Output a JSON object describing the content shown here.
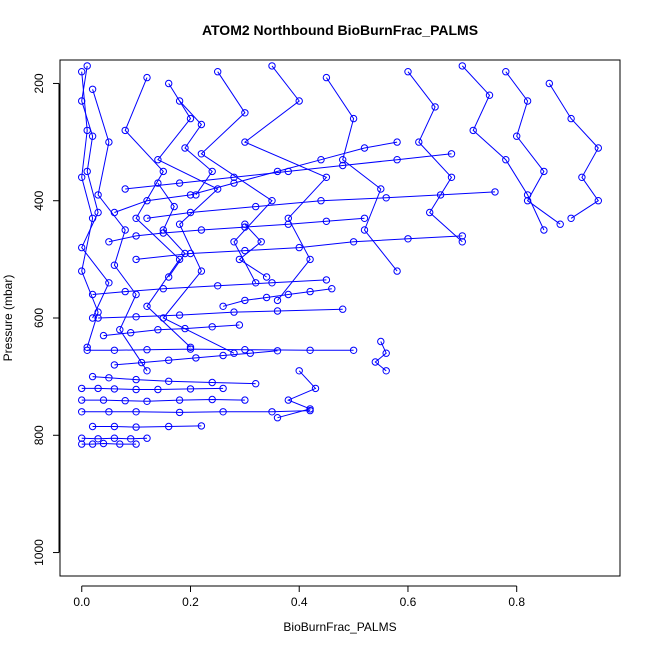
{
  "chart_data": {
    "type": "line",
    "title": "ATOM2 Northbound BioBurnFrac_PALMS",
    "xlabel": "BioBurnFrac_PALMS",
    "ylabel": "Pressure (mbar)",
    "xlim": [
      -0.04,
      0.99
    ],
    "ylim": [
      1040,
      160
    ],
    "y_reversed": true,
    "x_ticks": [
      0.0,
      0.2,
      0.4,
      0.6,
      0.8
    ],
    "x_tick_labels": [
      "0.0",
      "0.2",
      "0.4",
      "0.6",
      "0.8"
    ],
    "y_ticks": [
      200,
      400,
      600,
      800,
      1000
    ],
    "y_tick_labels": [
      "200",
      "400",
      "600",
      "800",
      "1000"
    ],
    "grid": false,
    "color": "#0000ff",
    "marker": "open-circle",
    "series": [
      {
        "x": [
          0.01,
          0.0,
          0.02,
          0.01,
          0.03,
          0.0,
          0.05,
          0.02
        ],
        "y": [
          170,
          230,
          290,
          350,
          420,
          480,
          540,
          600
        ]
      },
      {
        "x": [
          0.0,
          0.01,
          0.0,
          0.02,
          0.0,
          0.03,
          0.01
        ],
        "y": [
          180,
          280,
          360,
          430,
          520,
          590,
          650
        ]
      },
      {
        "x": [
          0.02,
          0.05,
          0.03,
          0.08,
          0.06,
          0.1,
          0.07,
          0.12
        ],
        "y": [
          210,
          300,
          390,
          450,
          510,
          560,
          620,
          690
        ]
      },
      {
        "x": [
          0.12,
          0.08,
          0.15,
          0.1,
          0.18,
          0.12,
          0.2
        ],
        "y": [
          190,
          280,
          350,
          430,
          500,
          580,
          650
        ]
      },
      {
        "x": [
          0.16,
          0.2,
          0.14,
          0.25,
          0.18,
          0.22,
          0.15,
          0.28
        ],
        "y": [
          200,
          260,
          330,
          380,
          440,
          520,
          600,
          660
        ]
      },
      {
        "x": [
          0.25,
          0.3,
          0.22,
          0.35,
          0.28,
          0.32
        ],
        "y": [
          180,
          250,
          320,
          400,
          470,
          540
        ]
      },
      {
        "x": [
          0.35,
          0.4,
          0.3,
          0.45,
          0.38,
          0.42,
          0.36
        ],
        "y": [
          170,
          230,
          300,
          360,
          430,
          500,
          570
        ]
      },
      {
        "x": [
          0.45,
          0.5,
          0.48,
          0.55,
          0.52,
          0.58
        ],
        "y": [
          190,
          260,
          330,
          380,
          450,
          520
        ]
      },
      {
        "x": [
          0.6,
          0.65,
          0.62,
          0.68,
          0.64,
          0.7
        ],
        "y": [
          180,
          240,
          300,
          360,
          420,
          470
        ]
      },
      {
        "x": [
          0.78,
          0.82,
          0.8,
          0.85,
          0.82,
          0.88
        ],
        "y": [
          180,
          230,
          290,
          350,
          400,
          440
        ]
      },
      {
        "x": [
          0.86,
          0.9,
          0.95,
          0.92,
          0.95,
          0.9
        ],
        "y": [
          200,
          260,
          310,
          360,
          400,
          430
        ]
      },
      {
        "x": [
          0.7,
          0.75,
          0.72,
          0.78,
          0.82,
          0.85
        ],
        "y": [
          170,
          220,
          280,
          330,
          390,
          450
        ]
      },
      {
        "x": [
          0.05,
          0.1,
          0.15,
          0.22,
          0.3,
          0.38,
          0.45,
          0.52
        ],
        "y": [
          470,
          460,
          455,
          450,
          445,
          440,
          435,
          430
        ]
      },
      {
        "x": [
          0.1,
          0.2,
          0.3,
          0.4,
          0.5,
          0.6,
          0.7
        ],
        "y": [
          500,
          490,
          485,
          480,
          470,
          465,
          460
        ]
      },
      {
        "x": [
          0.02,
          0.08,
          0.15,
          0.25,
          0.35,
          0.45
        ],
        "y": [
          560,
          555,
          550,
          545,
          540,
          535
        ]
      },
      {
        "x": [
          0.03,
          0.1,
          0.18,
          0.28,
          0.36,
          0.48
        ],
        "y": [
          600,
          598,
          595,
          590,
          588,
          585
        ]
      },
      {
        "x": [
          0.01,
          0.06,
          0.12,
          0.2,
          0.3,
          0.42,
          0.5
        ],
        "y": [
          655,
          655,
          654,
          653,
          654,
          655,
          655
        ]
      },
      {
        "x": [
          0.02,
          0.05,
          0.1,
          0.16,
          0.24,
          0.32
        ],
        "y": [
          700,
          702,
          705,
          708,
          710,
          712
        ]
      },
      {
        "x": [
          0.0,
          0.03,
          0.06,
          0.1,
          0.14,
          0.2,
          0.26
        ],
        "y": [
          720,
          720,
          721,
          722,
          722,
          721,
          720
        ]
      },
      {
        "x": [
          0.0,
          0.04,
          0.08,
          0.12,
          0.18,
          0.24,
          0.3
        ],
        "y": [
          740,
          740,
          741,
          742,
          740,
          739,
          740
        ]
      },
      {
        "x": [
          0.0,
          0.05,
          0.1,
          0.18,
          0.26,
          0.35,
          0.42
        ],
        "y": [
          760,
          760,
          760,
          761,
          760,
          760,
          758
        ]
      },
      {
        "x": [
          0.02,
          0.06,
          0.1,
          0.16,
          0.22
        ],
        "y": [
          785,
          785,
          786,
          785,
          784
        ]
      },
      {
        "x": [
          0.0,
          0.03,
          0.06,
          0.09,
          0.12
        ],
        "y": [
          805,
          806,
          805,
          806,
          805
        ]
      },
      {
        "x": [
          0.0,
          0.02,
          0.04,
          0.07,
          0.1
        ],
        "y": [
          815,
          815,
          814,
          815,
          815
        ]
      },
      {
        "x": [
          0.06,
          0.12,
          0.2,
          0.28,
          0.36,
          0.44,
          0.52,
          0.58
        ],
        "y": [
          420,
          400,
          390,
          370,
          350,
          330,
          310,
          300
        ]
      },
      {
        "x": [
          0.08,
          0.18,
          0.28,
          0.38,
          0.48,
          0.58,
          0.68
        ],
        "y": [
          380,
          370,
          360,
          350,
          340,
          330,
          320
        ]
      },
      {
        "x": [
          0.12,
          0.2,
          0.32,
          0.44,
          0.56,
          0.66,
          0.76
        ],
        "y": [
          430,
          420,
          410,
          400,
          395,
          390,
          385
        ]
      },
      {
        "x": [
          0.04,
          0.09,
          0.14,
          0.19,
          0.24,
          0.29
        ],
        "y": [
          630,
          625,
          620,
          618,
          615,
          612
        ]
      },
      {
        "x": [
          0.06,
          0.11,
          0.16,
          0.21,
          0.26,
          0.31,
          0.36
        ],
        "y": [
          680,
          676,
          672,
          668,
          664,
          660,
          656
        ]
      },
      {
        "x": [
          0.4,
          0.43,
          0.38,
          0.42,
          0.36
        ],
        "y": [
          690,
          720,
          740,
          755,
          770
        ]
      },
      {
        "x": [
          0.55,
          0.56,
          0.54,
          0.56
        ],
        "y": [
          640,
          660,
          675,
          690
        ]
      },
      {
        "x": [
          0.26,
          0.3,
          0.34,
          0.38,
          0.42,
          0.46
        ],
        "y": [
          580,
          570,
          565,
          560,
          555,
          550
        ]
      },
      {
        "x": [
          0.14,
          0.17,
          0.15,
          0.19,
          0.16
        ],
        "y": [
          370,
          410,
          450,
          490,
          530
        ]
      },
      {
        "x": [
          0.18,
          0.22,
          0.19,
          0.24,
          0.21
        ],
        "y": [
          230,
          270,
          310,
          350,
          390
        ]
      },
      {
        "x": [
          0.3,
          0.33,
          0.29,
          0.34
        ],
        "y": [
          440,
          470,
          500,
          530
        ]
      }
    ]
  }
}
